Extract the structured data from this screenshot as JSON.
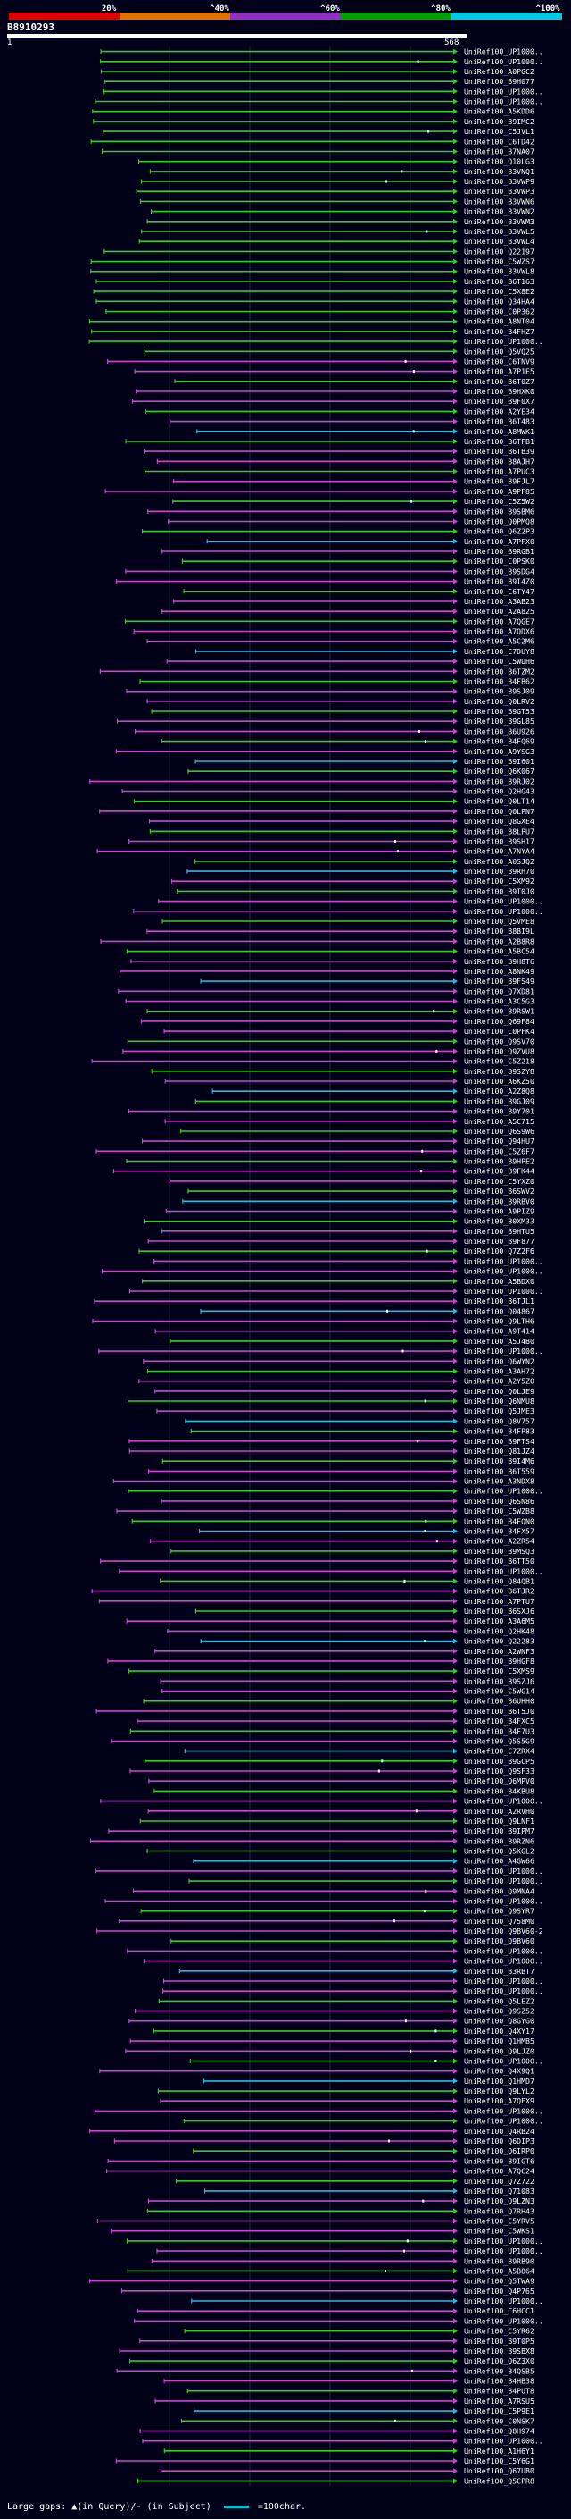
{
  "scale": {
    "labels": [
      "20%",
      "^40%",
      "^60%",
      "^80%",
      "^100%"
    ],
    "colors": [
      "#e00000",
      "#e07000",
      "#9030c0",
      "#00a000",
      "#00c8e0"
    ]
  },
  "query": {
    "id": "B8910293",
    "start": "1",
    "end": "568"
  },
  "hits": {
    "labels": [
      "UniRef100_UP1000..",
      "UniRef100_UP1000..",
      "UniRef100_A0PGC2",
      "UniRef100_B9H077",
      "UniRef100_UP1000..",
      "UniRef100_UP1000..",
      "UniRef100_A5KDD6",
      "UniRef100_B9IMC2",
      "UniRef100_C5JVL1",
      "UniRef100_C6TD42",
      "UniRef100_B7NA07",
      "UniRef100_Q10LG3",
      "UniRef100_B3VNQ1",
      "UniRef100_B3VWP9",
      "UniRef100_B3VWP3",
      "UniRef100_B3VWN6",
      "UniRef100_B3VWN2",
      "UniRef100_B3VWM3",
      "UniRef100_B3VWL5",
      "UniRef100_B3VWL4",
      "UniRef100_Q22197",
      "UniRef100_C5WZS7",
      "UniRef100_B3VWL8",
      "UniRef100_B6T163",
      "UniRef100_C5X8E2",
      "UniRef100_Q34HA4",
      "UniRef100_C0P362",
      "UniRef100_A8NT04",
      "UniRef100_B4FHZ7",
      "UniRef100_UP1000..",
      "UniRef100_Q5VQ25",
      "UniRef100_C6TNV9",
      "UniRef100_A7P1E5",
      "UniRef100_B6T0Z7",
      "UniRef100_B9HXK0",
      "UniRef100_B9F0X7",
      "UniRef100_A2YE34",
      "UniRef100_B6T483",
      "UniRef100_A8MWK1",
      "UniRef100_B6TFB1",
      "UniRef100_B6TB39",
      "UniRef100_B8AJH7",
      "UniRef100_A7PUC3",
      "UniRef100_B9FJL7",
      "UniRef100_A9PF85",
      "UniRef100_C5Z5W2",
      "UniRef100_B9SBM6",
      "UniRef100_Q0PMQ8",
      "UniRef100_Q6Z2P3",
      "UniRef100_A7PFX0",
      "UniRef100_B9RGB1",
      "UniRef100_C0PSK0",
      "UniRef100_B9SDG4",
      "UniRef100_B9I4Z0",
      "UniRef100_C6TY47",
      "UniRef100_A3AB23",
      "UniRef100_A2A825",
      "UniRef100_A7QGE7",
      "UniRef100_A7QDX6",
      "UniRef100_A5C2M6",
      "UniRef100_C7DUY8",
      "UniRef100_C5WUH6",
      "UniRef100_B6TZM2",
      "UniRef100_B4FB62",
      "UniRef100_B9SJ09",
      "UniRef100_Q0LRV2",
      "UniRef100_B9GT53",
      "UniRef100_B9GL85",
      "UniRef100_B6U926",
      "UniRef100_B4FQ69",
      "UniRef100_A9YSG3",
      "UniRef100_B9I601",
      "UniRef100_Q6K067",
      "UniRef100_B9RJ02",
      "UniRef100_Q2HG43",
      "UniRef100_Q0LT14",
      "UniRef100_Q0LPN7",
      "UniRef100_Q8GXE4",
      "UniRef100_B8LPU7",
      "UniRef100_B9SH17",
      "UniRef100_A7NYA4",
      "UniRef100_A0SJQ2",
      "UniRef100_B9RH70",
      "UniRef100_C5XM92",
      "UniRef100_B9T0J0",
      "UniRef100_UP1000..",
      "UniRef100_UP1000..",
      "UniRef100_Q5VME8",
      "UniRef100_B8BI9L",
      "UniRef100_A2B8R8",
      "UniRef100_A5BC54",
      "UniRef100_B9H8T6",
      "UniRef100_A8NK49",
      "UniRef100_B9FS49",
      "UniRef100_Q7XD81",
      "UniRef100_A3C5G3",
      "UniRef100_B9RSW1",
      "UniRef100_Q69F84",
      "UniRef100_C0PFK4",
      "UniRef100_Q9SV70",
      "UniRef100_Q9ZVU8",
      "UniRef100_C5Z218",
      "UniRef100_B9SZY8",
      "UniRef100_A6KZ50",
      "UniRef100_A2Z8Q8",
      "UniRef100_B9GJ09",
      "UniRef100_B9Y701",
      "UniRef100_A5C715",
      "UniRef100_Q6S9W6",
      "UniRef100_Q94HU7",
      "UniRef100_C5Z6F7",
      "UniRef100_B9HPE2",
      "UniRef100_B9FK44",
      "UniRef100_C5YXZ0",
      "UniRef100_B6SWV2",
      "UniRef100_B9RBV0",
      "UniRef100_A9PIZ9",
      "UniRef100_B0XM33",
      "UniRef100_B9HTU5",
      "UniRef100_B9F877",
      "UniRef100_Q7Z2F6",
      "UniRef100_UP1000..",
      "UniRef100_UP1000..",
      "UniRef100_A5BDX0",
      "UniRef100_UP1000..",
      "UniRef100_B6TJL1",
      "UniRef100_Q04867",
      "UniRef100_Q9LTH6",
      "UniRef100_A9T414",
      "UniRef100_A5J4B0",
      "UniRef100_UP1000..",
      "UniRef100_Q6WYN2",
      "UniRef100_A3AH72",
      "UniRef100_A2Y5Z0",
      "UniRef100_Q0LJE9",
      "UniRef100_Q6NMU8",
      "UniRef100_Q5JME3",
      "UniRef100_Q8V757",
      "UniRef100_B4FP83",
      "UniRef100_B9FTS4",
      "UniRef100_Q81JZ4",
      "UniRef100_B9I4M6",
      "UniRef100_B6T559",
      "UniRef100_A3NDX8",
      "UniRef100_UP1000..",
      "UniRef100_Q6SN86",
      "UniRef100_C5WZB8",
      "UniRef100_B4FQN0",
      "UniRef100_B4FX57",
      "UniRef100_A2ZR54",
      "UniRef100_B9MSQ3",
      "UniRef100_B6TT50",
      "UniRef100_UP1000..",
      "UniRef100_Q84QB1",
      "UniRef100_B6TJR2",
      "UniRef100_A7PTU7",
      "UniRef100_B6SXJ6",
      "UniRef100_A3A6M5",
      "UniRef100_Q2HK48",
      "UniRef100_Q22283",
      "UniRef100_A2WNF3",
      "UniRef100_B9HGF8",
      "UniRef100_C5XMS9",
      "UniRef100_B9SZJ6",
      "UniRef100_C5WG14",
      "UniRef100_B6UHH0",
      "UniRef100_B6T5J0",
      "UniRef100_B4FXC5",
      "UniRef100_B4F7U3",
      "UniRef100_Q5S5G9",
      "UniRef100_C7ZRX4",
      "UniRef100_B9GCP5",
      "UniRef100_Q9SF33",
      "UniRef100_Q6MPV0",
      "UniRef100_B4KBU8",
      "UniRef100_UP1000..",
      "UniRef100_A2RVH0",
      "UniRef100_Q9LNF1",
      "UniRef100_B9IPM7",
      "UniRef100_B9RZN6",
      "UniRef100_Q5KGL2",
      "UniRef100_A4GW66",
      "UniRef100_UP1000..",
      "UniRef100_UP1000..",
      "UniRef100_Q9MNA4",
      "UniRef100_UP1000..",
      "UniRef100_Q9SYR7",
      "UniRef100_Q758M0",
      "UniRef100_Q9BV60-2",
      "UniRef100_Q9BV60",
      "UniRef100_UP1000..",
      "UniRef100_UP1000..",
      "UniRef100_B3RBT7",
      "UniRef100_UP1000..",
      "UniRef100_UP1000..",
      "UniRef100_Q5LEZ2",
      "UniRef100_Q9SZ52",
      "UniRef100_Q8GYG0",
      "UniRef100_Q4XY17",
      "UniRef100_Q1HMB5",
      "UniRef100_Q9LJZ0",
      "UniRef100_UP1000..",
      "UniRef100_Q4X9Q1",
      "UniRef100_Q1HMD7",
      "UniRef100_Q9LYL2",
      "UniRef100_A7QEX9",
      "UniRef100_UP1000..",
      "UniRef100_UP1000..",
      "UniRef100_Q4RB24",
      "UniRef100_Q6DIP3",
      "UniRef100_Q6IRP0",
      "UniRef100_B9IGT6",
      "UniRef100_A7QC24",
      "UniRef100_Q7Z722",
      "UniRef100_Q71083",
      "UniRef100_Q9LZN3",
      "UniRef100_Q7RH43",
      "UniRef100_C5YRV5",
      "UniRef100_C5WKS1",
      "UniRef100_UP1000..",
      "UniRef100_UP1000..",
      "UniRef100_B9RB90",
      "UniRef100_A5B864",
      "UniRef100_Q5TWA9",
      "UniRef100_Q4P765",
      "UniRef100_UP1000..",
      "UniRef100_C6HCC1",
      "UniRef100_UP1000..",
      "UniRef100_C5YR62",
      "UniRef100_B9T0P5",
      "UniRef100_B9SBX8",
      "UniRef100_Q6Z3X0",
      "UniRef100_B4QSB5",
      "UniRef100_B4HB38",
      "UniRef100_B4PUT8",
      "UniRef100_A7RSU5",
      "UniRef100_C5P9E1",
      "UniRef100_C0NSK7",
      "UniRef100_Q8H974",
      "UniRef100_UP1000..",
      "UniRef100_A1H6Y1",
      "UniRef100_C5Y6G1",
      "UniRef100_Q67UB0",
      "UniRef100_Q5CPR8"
    ]
  },
  "legend": {
    "gaps_text": "Large gaps: ▲(in Query)/- (in Subject)",
    "scale_text": "=100char."
  }
}
